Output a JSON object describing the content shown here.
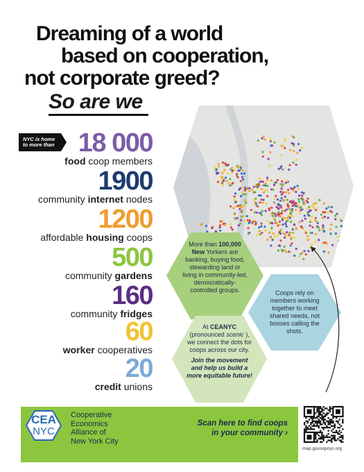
{
  "header": {
    "title_lines": [
      "Dreaming of a world",
      "based on cooperation,",
      "not corporate greed?"
    ],
    "tagline": "So are we"
  },
  "badge": "NYC is home to more than",
  "stats": [
    {
      "number": "18 000",
      "color": "#7b5ca8",
      "parts": [
        {
          "text": "food",
          "bold": true
        },
        {
          "text": "coop members"
        }
      ]
    },
    {
      "number": "1900",
      "color": "#1f3b70",
      "parts": [
        {
          "text": "community"
        },
        {
          "text": "internet",
          "bold": true
        },
        {
          "text": "nodes"
        }
      ]
    },
    {
      "number": "1200",
      "color": "#ee9d2e",
      "parts": [
        {
          "text": "affordable"
        },
        {
          "text": "housing",
          "bold": true
        },
        {
          "text": "coops"
        }
      ]
    },
    {
      "number": "500",
      "color": "#8cc63f",
      "parts": [
        {
          "text": "community"
        },
        {
          "text": "gardens",
          "bold": true
        }
      ]
    },
    {
      "number": "160",
      "color": "#5a2d82",
      "parts": [
        {
          "text": "community"
        },
        {
          "text": "fridges",
          "bold": true
        }
      ]
    },
    {
      "number": "60",
      "color": "#f2c230",
      "parts": [
        {
          "text": "worker",
          "bold": true
        },
        {
          "text": "cooperatives"
        }
      ]
    },
    {
      "number": "20",
      "color": "#7ea9d8",
      "parts": [
        {
          "text": "credit",
          "bold": true
        },
        {
          "text": "unions"
        }
      ]
    }
  ],
  "hexagons": [
    {
      "paragraphs": [
        [
          {
            "text": "More than"
          },
          {
            "text": "100,000 New",
            "bold": true
          },
          {
            "text": "Yorkers are banking, buying food, stewarding land or living in community-led, democratically-controlled groups."
          }
        ]
      ]
    },
    {
      "paragraphs": [
        [
          {
            "text": "Coops rely on members working together to meet shared needs, not bosses calling the shots."
          }
        ]
      ]
    },
    {
      "paragraphs": [
        [
          {
            "text": "At"
          },
          {
            "text": "CEANYC",
            "bold": true
          },
          {
            "text": "(pronounced"
          },
          {
            "text": "scenic",
            "italic": true
          },
          {
            "text": "), we connect the dots for coops across our city."
          }
        ],
        [
          {
            "text": "Join the movement and help us build a more equitable future!",
            "bold": true,
            "italic": true
          }
        ]
      ]
    }
  ],
  "footer": {
    "logo": [
      "CEA",
      "NYC"
    ],
    "org_lines": [
      "Cooperative",
      "Economics",
      "Alliance of",
      "New York City"
    ],
    "scan_lines": [
      "Scan here to find coops",
      "in your community ›"
    ],
    "url": "map.gocoopnyc.org"
  }
}
